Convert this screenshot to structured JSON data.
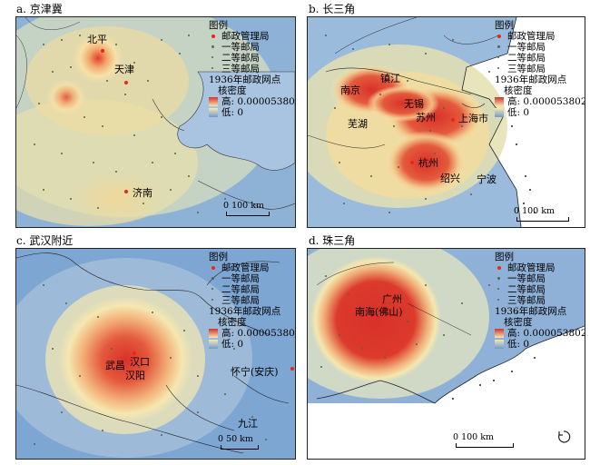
{
  "legend": {
    "title": "图例",
    "post_admin": "邮政管理局",
    "first_class": "一等邮局",
    "second_class": "二等邮局",
    "third_class": "三等邮局",
    "density_title": "1936年邮政网点",
    "density_subtitle": "核密度",
    "high": "高: 0.0000538022",
    "low": "低: 0"
  },
  "colors": {
    "high": "#d9312a",
    "mid": "#f5e7b0",
    "low": "#6f9bd0",
    "post_admin": "#e8261b",
    "post_office": "#556644"
  },
  "panels": [
    {
      "title": "a. 京津冀",
      "places": [
        "北平",
        "天津",
        "济南"
      ],
      "scale_label": "0    100 km"
    },
    {
      "title": "b. 长三角",
      "places": [
        "南京",
        "镇江",
        "芜湖",
        "无锡",
        "苏州",
        "上海市",
        "杭州",
        "绍兴",
        "宁波"
      ],
      "scale_label": "0      100 km"
    },
    {
      "title": "c. 武汉附近",
      "places": [
        "武昌",
        "汉口",
        "汉阳",
        "怀宁(安庆)",
        "九江"
      ],
      "scale_label": "0   50 km"
    },
    {
      "title": "d. 珠三角",
      "places": [
        "广州",
        "南海(佛山)"
      ],
      "scale_label": "0       100 km",
      "north_arrow": "north-arrow-icon"
    }
  ]
}
